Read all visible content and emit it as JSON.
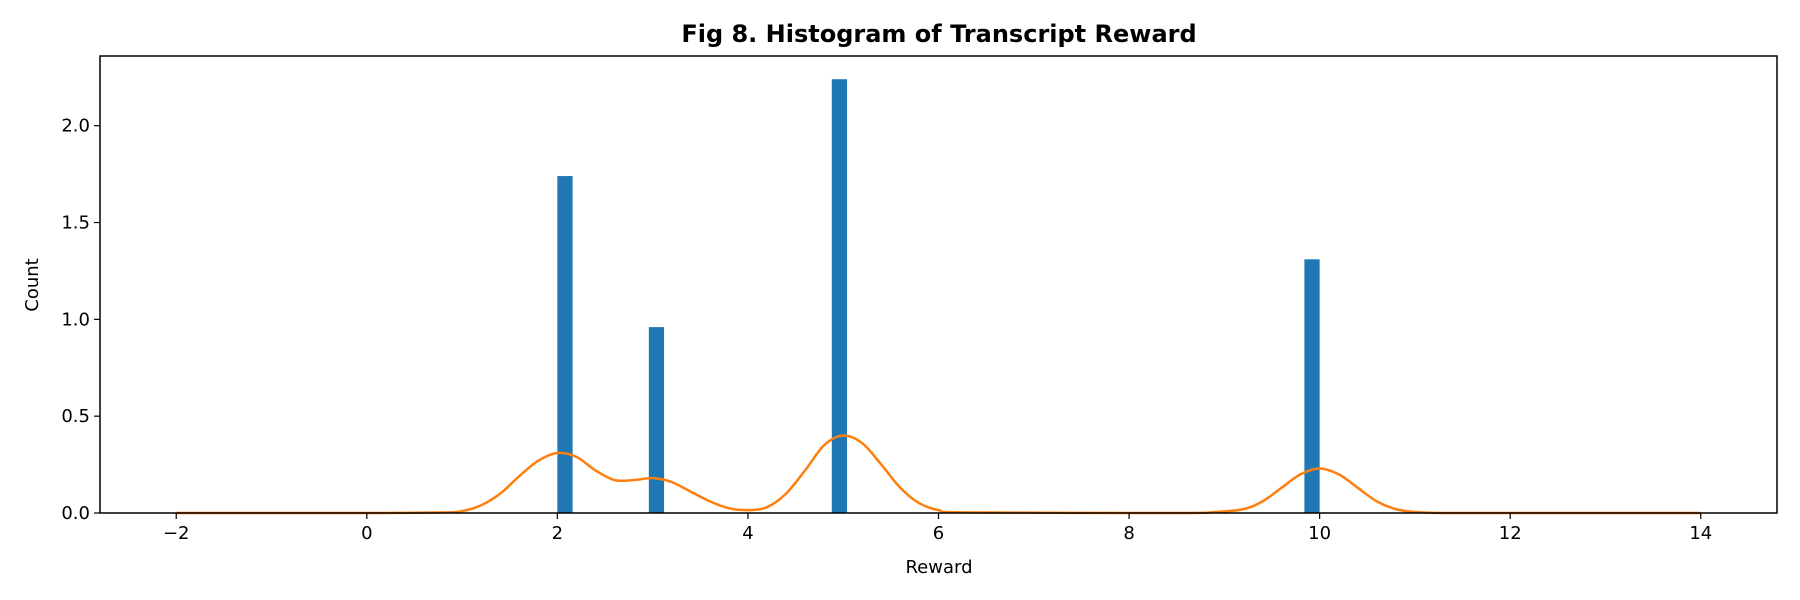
{
  "chart_data": {
    "type": "bar",
    "title": "Fig 8. Histogram of Transcript Reward",
    "xlabel": "Reward",
    "ylabel": "Count",
    "xlim": [
      -2.8,
      14.8
    ],
    "ylim": [
      0,
      2.36
    ],
    "xticks": [
      "−2",
      "0",
      "2",
      "4",
      "6",
      "8",
      "10",
      "12",
      "14"
    ],
    "xtick_values": [
      -2,
      0,
      2,
      4,
      6,
      8,
      10,
      12,
      14
    ],
    "yticks": [
      "0.0",
      "0.5",
      "1.0",
      "1.5",
      "2.0"
    ],
    "ytick_values": [
      0,
      0.5,
      1.0,
      1.5,
      2.0
    ],
    "bar_width": 0.16,
    "series": [
      {
        "type": "bar",
        "color": "#1f77b4",
        "x": [
          2.08,
          3.04,
          4.96,
          9.92
        ],
        "values": [
          1.74,
          0.96,
          2.24,
          1.31
        ]
      },
      {
        "type": "line",
        "color": "#ff7f0e",
        "x": [
          -2.0,
          0.0,
          0.8,
          1.0,
          1.2,
          1.4,
          1.6,
          1.8,
          2.0,
          2.2,
          2.4,
          2.6,
          2.8,
          3.0,
          3.2,
          3.4,
          3.6,
          3.8,
          4.0,
          4.2,
          4.4,
          4.6,
          4.8,
          5.0,
          5.2,
          5.4,
          5.6,
          5.8,
          6.0,
          6.3,
          8.5,
          8.9,
          9.2,
          9.4,
          9.6,
          9.8,
          10.0,
          10.2,
          10.4,
          10.6,
          10.8,
          11.0,
          11.3,
          12.0,
          14.0
        ],
        "values": [
          0.0,
          0.0,
          0.003,
          0.01,
          0.04,
          0.1,
          0.19,
          0.27,
          0.31,
          0.29,
          0.22,
          0.17,
          0.17,
          0.18,
          0.16,
          0.11,
          0.06,
          0.025,
          0.015,
          0.03,
          0.1,
          0.22,
          0.35,
          0.4,
          0.36,
          0.25,
          0.13,
          0.05,
          0.015,
          0.003,
          0.0,
          0.005,
          0.02,
          0.06,
          0.13,
          0.2,
          0.23,
          0.2,
          0.13,
          0.06,
          0.02,
          0.005,
          0.0,
          0.0,
          0.0
        ]
      }
    ]
  }
}
